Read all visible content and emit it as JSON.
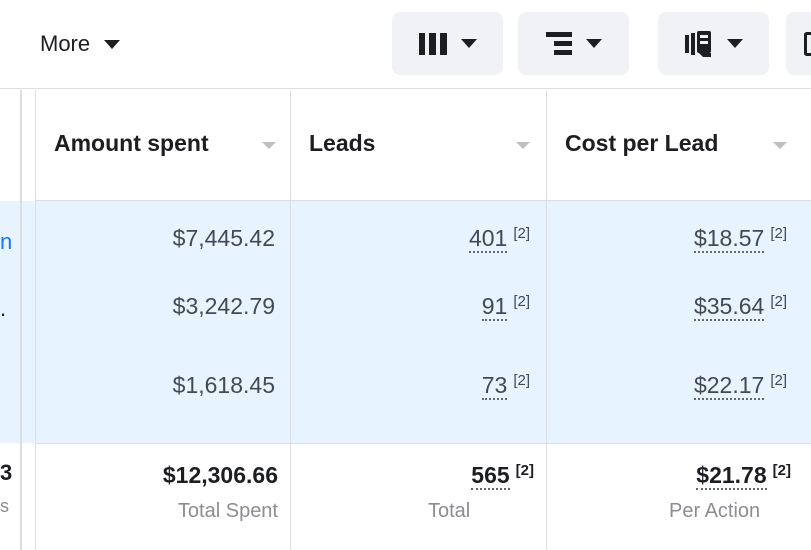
{
  "toolbar": {
    "more_label": "More",
    "buttons": [
      {
        "icon": "columns-icon"
      },
      {
        "icon": "breakdown-icon"
      },
      {
        "icon": "reports-icon"
      }
    ]
  },
  "left_stub": {
    "row1": "n",
    "row2": ".",
    "foot1": "3",
    "foot2": "s"
  },
  "columns": [
    {
      "header": "Amount spent",
      "rows": [
        "$7,445.42",
        "$3,242.79",
        "$1,618.45"
      ],
      "total_value": "$12,306.66",
      "total_label": "Total Spent"
    },
    {
      "header": "Leads",
      "rows": [
        "401",
        "91",
        "73"
      ],
      "row_sup": "[2]",
      "total_value": "565",
      "total_sup": "[2]",
      "total_label": "Total"
    },
    {
      "header": "Cost per Lead",
      "rows": [
        "$18.57",
        "$35.64",
        "$22.17"
      ],
      "row_sup": "[2]",
      "total_value": "$21.78",
      "total_sup": "[2]",
      "total_label": "Per Action"
    }
  ],
  "colors": {
    "selected_row_bg": "#e7f3ff",
    "link_blue": "#1877f2",
    "button_bg": "#f0f2f5",
    "border": "#dadde1"
  }
}
